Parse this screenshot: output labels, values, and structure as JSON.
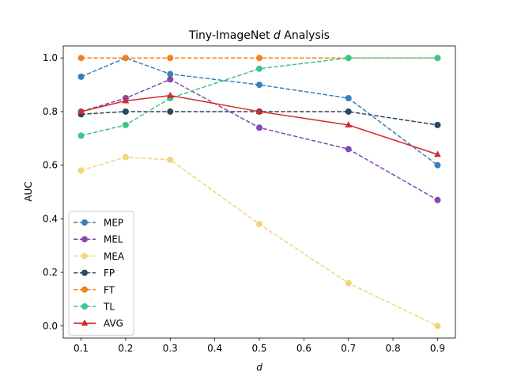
{
  "chart_data": {
    "type": "line",
    "title_prefix": "Tiny-ImageNet ",
    "title_var": "d",
    "title_suffix": " Analysis",
    "xlabel": "d",
    "ylabel": "AUC",
    "xlim": [
      0.06,
      0.94
    ],
    "ylim": [
      -0.045,
      1.045
    ],
    "xticks": [
      0.1,
      0.2,
      0.3,
      0.4,
      0.5,
      0.6,
      0.7,
      0.8,
      0.9
    ],
    "xtick_labels": [
      "0.1",
      "0.2",
      "0.3",
      "0.4",
      "0.5",
      "0.6",
      "0.7",
      "0.8",
      "0.9"
    ],
    "yticks": [
      0.0,
      0.2,
      0.4,
      0.6,
      0.8,
      1.0
    ],
    "ytick_labels": [
      "0.0",
      "0.2",
      "0.4",
      "0.6",
      "0.8",
      "1.0"
    ],
    "x": [
      0.1,
      0.2,
      0.3,
      0.5,
      0.7,
      0.9
    ],
    "legend_location": "lower-left",
    "series": [
      {
        "name": "MEP",
        "color": "#3a80b8",
        "dash": true,
        "marker": "circle",
        "values": [
          0.93,
          1.0,
          0.94,
          0.9,
          0.85,
          0.6
        ]
      },
      {
        "name": "MEL",
        "color": "#8447b3",
        "dash": true,
        "marker": "circle",
        "values": [
          0.8,
          0.85,
          0.92,
          0.74,
          0.66,
          0.47
        ]
      },
      {
        "name": "MEA",
        "color": "#f0d77a",
        "dash": true,
        "marker": "circle",
        "values": [
          0.58,
          0.63,
          0.62,
          0.38,
          0.16,
          0.0
        ]
      },
      {
        "name": "FP",
        "color": "#2c4760",
        "dash": true,
        "marker": "circle",
        "values": [
          0.79,
          0.8,
          0.8,
          0.8,
          0.8,
          0.75
        ]
      },
      {
        "name": "FT",
        "color": "#f5801e",
        "dash": true,
        "marker": "circle",
        "values": [
          1.0,
          1.0,
          1.0,
          1.0,
          1.0,
          1.0
        ]
      },
      {
        "name": "TL",
        "color": "#3fc489",
        "dash": true,
        "marker": "circle",
        "values": [
          0.71,
          0.75,
          0.85,
          0.96,
          1.0,
          1.0
        ]
      },
      {
        "name": "AVG",
        "color": "#d42a2a",
        "dash": false,
        "marker": "triangle",
        "values": [
          0.8,
          0.84,
          0.86,
          0.8,
          0.75,
          0.64
        ]
      }
    ]
  }
}
